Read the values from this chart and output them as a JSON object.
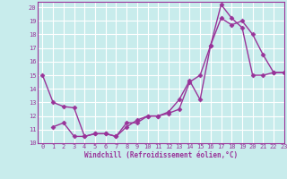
{
  "title": "",
  "xlabel": "Windchill (Refroidissement éolien,°C)",
  "background_color": "#c8ecec",
  "line_color": "#993399",
  "grid_color": "#ffffff",
  "xlim": [
    -0.5,
    23
  ],
  "ylim": [
    10,
    20.4
  ],
  "x_ticks": [
    0,
    1,
    2,
    3,
    4,
    5,
    6,
    7,
    8,
    9,
    10,
    11,
    12,
    13,
    14,
    15,
    16,
    17,
    18,
    19,
    20,
    21,
    22,
    23
  ],
  "y_ticks": [
    10,
    11,
    12,
    13,
    14,
    15,
    16,
    17,
    18,
    19,
    20
  ],
  "line1_x": [
    0,
    1,
    2,
    3,
    4,
    5,
    6,
    7,
    8,
    9,
    10,
    11,
    12,
    13,
    14,
    15,
    16,
    17,
    18,
    19,
    20,
    21,
    22,
    23
  ],
  "line1_y": [
    15.0,
    13.0,
    12.7,
    12.6,
    10.5,
    10.7,
    10.7,
    10.5,
    11.5,
    11.5,
    12.0,
    12.0,
    12.2,
    12.5,
    14.5,
    15.0,
    17.2,
    19.2,
    18.7,
    19.0,
    18.0,
    16.5,
    15.2,
    15.2
  ],
  "line2_x": [
    1,
    2,
    3,
    4,
    5,
    6,
    7,
    8,
    9,
    10,
    11,
    12,
    13,
    14,
    15,
    16,
    17,
    18,
    19,
    20,
    21,
    22,
    23
  ],
  "line2_y": [
    11.2,
    11.5,
    10.5,
    10.5,
    10.7,
    10.7,
    10.5,
    11.2,
    11.7,
    12.0,
    12.0,
    12.3,
    13.2,
    14.6,
    13.2,
    17.2,
    20.2,
    19.2,
    18.5,
    15.0,
    15.0,
    15.2,
    15.2
  ],
  "marker": "D",
  "markersize": 2.5,
  "linewidth": 1.0
}
